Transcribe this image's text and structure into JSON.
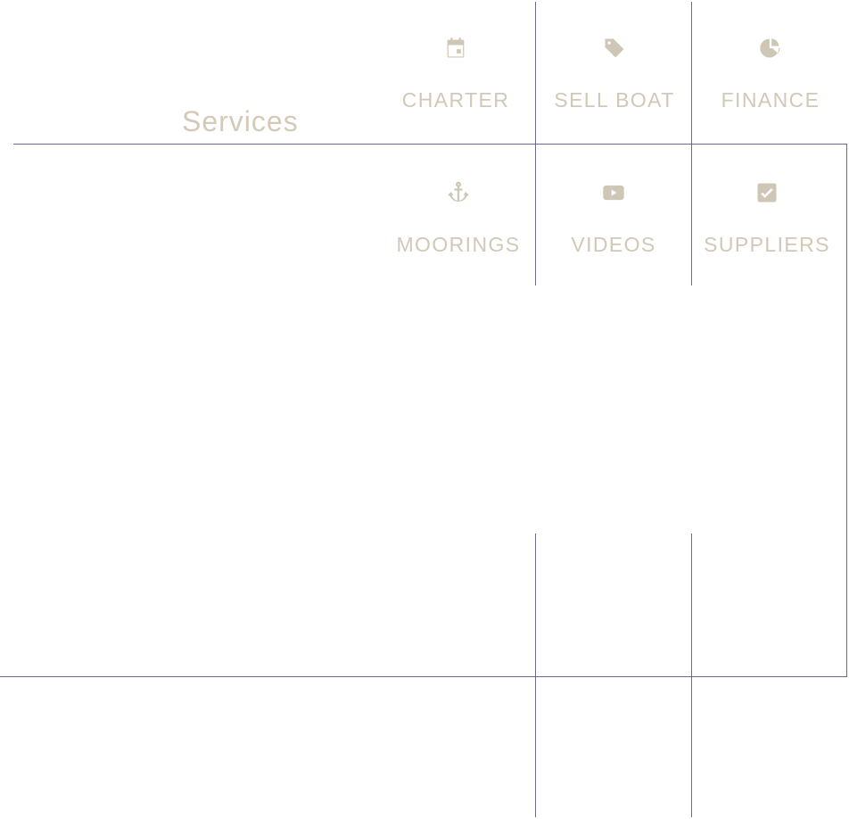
{
  "section": {
    "title": "Services"
  },
  "services": [
    {
      "label": "CHARTER",
      "icon": "calendar-icon"
    },
    {
      "label": "SELL BOAT",
      "icon": "tag-icon"
    },
    {
      "label": "FINANCE",
      "icon": "pie-chart-icon"
    },
    {
      "label": "MOORINGS",
      "icon": "anchor-icon"
    },
    {
      "label": "VIDEOS",
      "icon": "youtube-play-icon"
    },
    {
      "label": "SUPPLIERS",
      "icon": "checkbox-checked-icon"
    }
  ],
  "colors": {
    "text": "#cfc7b6",
    "grid_line": "#5a5a88",
    "background": "#ffffff"
  }
}
